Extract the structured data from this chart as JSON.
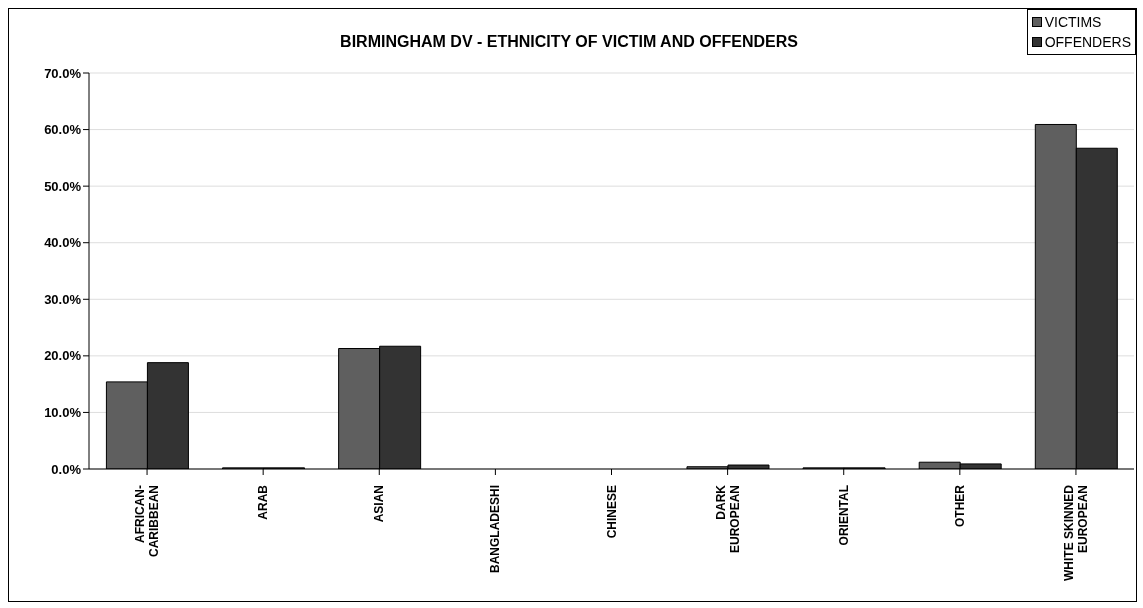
{
  "chart_data": {
    "type": "bar",
    "title": "BIRMINGHAM DV - ETHNICITY OF VICTIM AND OFFENDERS",
    "categories": [
      "AFRICAN-\nCARIBBEAN",
      "ARAB",
      "ASIAN",
      "BANGLADESHI",
      "CHINESE",
      "DARK\nEUROPEAN",
      "ORIENTAL",
      "OTHER",
      "WHITE SKINNED\nEUROPEAN"
    ],
    "series": [
      {
        "name": "VICTIMS",
        "color": "#5f5f5f",
        "values": [
          15.4,
          0.2,
          21.3,
          0,
          0,
          0.4,
          0.2,
          1.2,
          60.9
        ]
      },
      {
        "name": "OFFENDERS",
        "color": "#333333",
        "values": [
          18.8,
          0.2,
          21.7,
          0,
          0,
          0.7,
          0.2,
          0.9,
          56.7
        ]
      }
    ],
    "ylim": [
      0,
      70
    ],
    "yticks": [
      {
        "value": 0,
        "label": "0.0%"
      },
      {
        "value": 10,
        "label": "10.0%"
      },
      {
        "value": 20,
        "label": "20.0%"
      },
      {
        "value": 30,
        "label": "30.0%"
      },
      {
        "value": 40,
        "label": "40.0%"
      },
      {
        "value": 50,
        "label": "50.0%"
      },
      {
        "value": 60,
        "label": "60.0%"
      },
      {
        "value": 70,
        "label": "70.0%"
      }
    ],
    "grid": "y",
    "legend": "top right"
  }
}
